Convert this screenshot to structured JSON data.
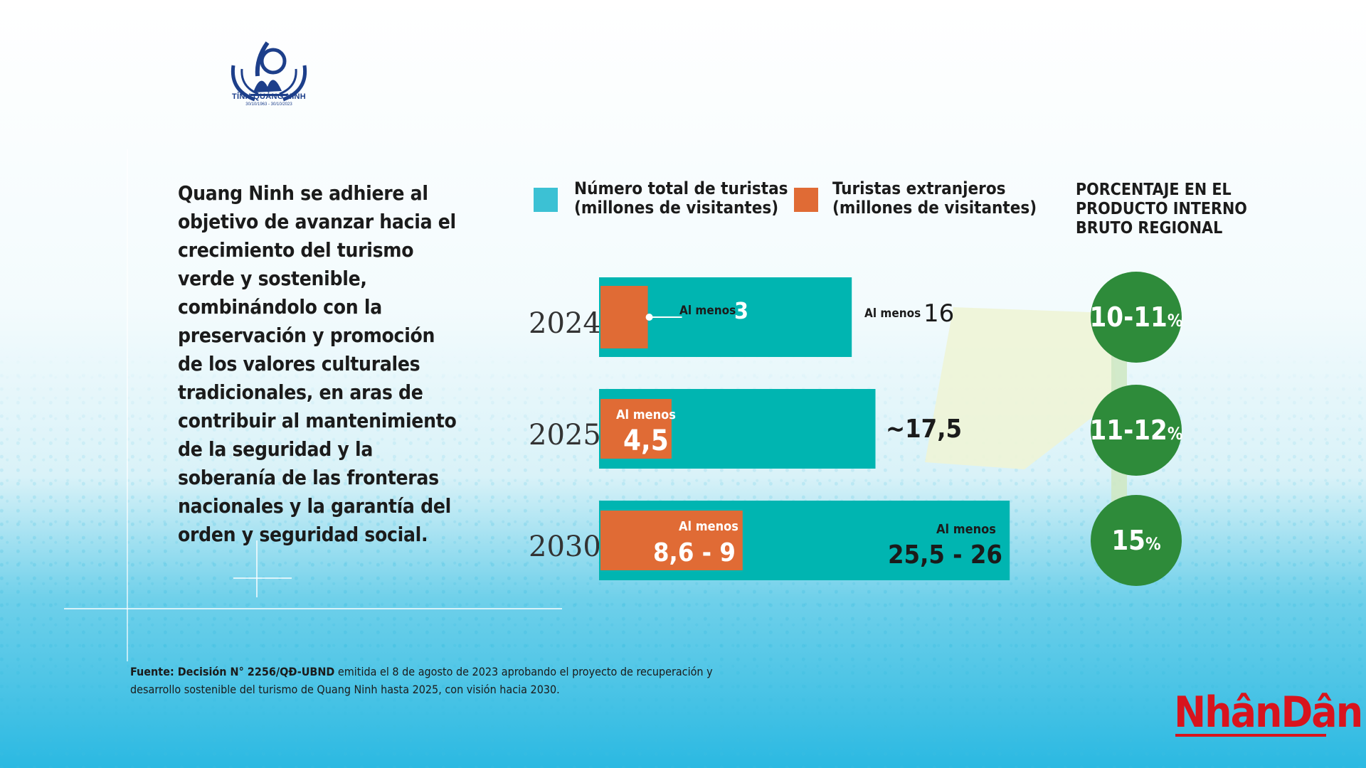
{
  "logo": {
    "caption": "TỈNH QUẢNG NINH",
    "dates": "30/10/1963 - 30/10/2023",
    "colors": {
      "primary": "#1d3f8a"
    }
  },
  "intro_lines": [
    "Quang Ninh se adhiere al",
    "objetivo de avanzar hacia el",
    "crecimiento del turismo",
    "verde y sostenible,",
    "combinándolo con la",
    "preservación y promoción",
    "de los valores culturales",
    "tradicionales, en aras de",
    "contribuir al mantenimiento",
    "de la seguridad y la",
    "soberanía de las fronteras",
    "nacionales y la garantía del",
    "orden y seguridad social."
  ],
  "legend": [
    {
      "lines": [
        "Número total de turistas",
        "(millones de visitantes)"
      ],
      "color": "#3cc1d4"
    },
    {
      "lines": [
        "Turistas extranjeros",
        "(millones de visitantes)"
      ],
      "color": "#e06b35"
    }
  ],
  "gdp_title_lines": [
    "PORCENTAJE EN EL",
    "PRODUCTO INTERNO",
    "BRUTO REGIONAL"
  ],
  "chart_data": {
    "type": "bar",
    "orientation": "horizontal",
    "categories": [
      "2024",
      "2025",
      "2030"
    ],
    "series": [
      {
        "name": "Número total de turistas (millones de visitantes)",
        "values": [
          16,
          17.5,
          26
        ],
        "color": "#00b5b1"
      },
      {
        "name": "Turistas extranjeros (millones de visitantes)",
        "values": [
          3,
          4.5,
          9
        ],
        "color": "#e06b35"
      }
    ],
    "total_labels": [
      {
        "prefix": "Al menos",
        "value": "16"
      },
      {
        "prefix": "",
        "value": "~17,5"
      },
      {
        "prefix": "Al menos",
        "value": "25,5 - 26"
      }
    ],
    "foreign_labels": [
      {
        "prefix": "Al menos",
        "value": "3"
      },
      {
        "prefix": "Al menos",
        "value": "4,5"
      },
      {
        "prefix": "Al menos",
        "value": "8,6 - 9"
      }
    ],
    "gdp_share": [
      {
        "year": "2024",
        "range": "10-11",
        "unit": "%"
      },
      {
        "year": "2025",
        "range": "11-12",
        "unit": "%"
      },
      {
        "year": "2030",
        "range": "15",
        "unit": "%"
      }
    ],
    "colors": {
      "gdp_circle": "#2e8b3a"
    }
  },
  "source": {
    "bold": "Fuente: Decisión N° 2256/QĐ-UBND",
    "line1_rest": " emitida el 8 de agosto de 2023  aprobando el proyecto de recuperación y",
    "line2": "desarrollo sostenible del turismo de Quang Ninh hasta 2025, con visión hacia 2030."
  },
  "brand": "NhânDân"
}
